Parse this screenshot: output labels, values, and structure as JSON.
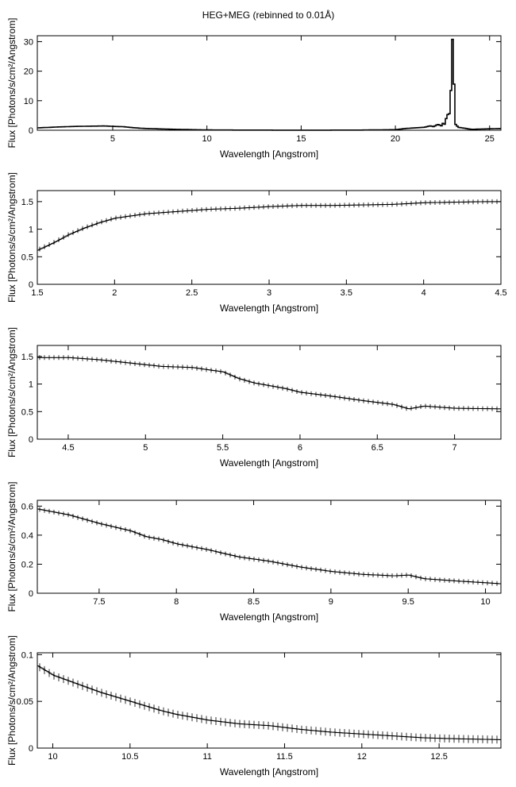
{
  "title": "HEG+MEG (rebinned to 0.01Å)",
  "chart_data": [
    {
      "type": "line",
      "xlabel": "Wavelength [Angstrom]",
      "ylabel": "Flux [Photons/s/cm²/Angstrom]",
      "xlim": [
        1,
        25.6
      ],
      "ylim": [
        0,
        32
      ],
      "xticks": [
        5,
        10,
        15,
        20,
        25
      ],
      "yticks": [
        0,
        10,
        20,
        30
      ],
      "series": [
        {
          "values": [
            [
              1.0,
              0.8
            ],
            [
              2.0,
              1.1
            ],
            [
              3.0,
              1.3
            ],
            [
              4.0,
              1.4
            ],
            [
              4.5,
              1.45
            ],
            [
              5.0,
              1.3
            ],
            [
              5.5,
              1.2
            ],
            [
              6.0,
              0.9
            ],
            [
              6.5,
              0.65
            ],
            [
              7.0,
              0.55
            ],
            [
              8.0,
              0.35
            ],
            [
              9.0,
              0.22
            ],
            [
              10.0,
              0.1
            ],
            [
              12.0,
              0.05
            ],
            [
              15.0,
              0.03
            ],
            [
              18.0,
              0.05
            ],
            [
              20.0,
              0.2
            ],
            [
              20.5,
              0.6
            ],
            [
              21.0,
              0.8
            ],
            [
              21.5,
              1.0
            ],
            [
              21.8,
              1.5
            ],
            [
              22.0,
              1.2
            ],
            [
              22.2,
              2.0
            ],
            [
              22.4,
              1.5
            ],
            [
              22.5,
              2.5
            ],
            [
              22.6,
              1.8
            ],
            [
              22.7,
              6.0
            ],
            [
              22.8,
              4.0
            ],
            [
              22.9,
              12.0
            ],
            [
              22.95,
              30.0
            ],
            [
              23.0,
              31.0
            ],
            [
              23.05,
              12.0
            ],
            [
              23.1,
              20.0
            ],
            [
              23.15,
              2.0
            ],
            [
              23.3,
              1.0
            ],
            [
              24.0,
              0.3
            ],
            [
              25.0,
              0.5
            ],
            [
              25.6,
              0.6
            ]
          ]
        }
      ]
    },
    {
      "type": "line",
      "xlabel": "Wavelength [Angstrom]",
      "ylabel": "Flux [Photons/s/cm²/Angstrom]",
      "xlim": [
        1.5,
        4.5
      ],
      "ylim": [
        0,
        1.7
      ],
      "xticks": [
        1.5,
        2,
        2.5,
        3,
        3.5,
        4,
        4.5
      ],
      "yticks": [
        0,
        0.5,
        1,
        1.5
      ],
      "series": [
        {
          "values": [
            [
              1.5,
              0.62
            ],
            [
              1.6,
              0.75
            ],
            [
              1.7,
              0.9
            ],
            [
              1.8,
              1.02
            ],
            [
              1.9,
              1.12
            ],
            [
              2.0,
              1.2
            ],
            [
              2.2,
              1.28
            ],
            [
              2.4,
              1.32
            ],
            [
              2.6,
              1.36
            ],
            [
              2.8,
              1.38
            ],
            [
              3.0,
              1.41
            ],
            [
              3.2,
              1.43
            ],
            [
              3.4,
              1.43
            ],
            [
              3.6,
              1.44
            ],
            [
              3.8,
              1.45
            ],
            [
              4.0,
              1.48
            ],
            [
              4.2,
              1.49
            ],
            [
              4.4,
              1.5
            ],
            [
              4.5,
              1.5
            ]
          ]
        }
      ]
    },
    {
      "type": "line",
      "xlabel": "Wavelength [Angstrom]",
      "ylabel": "Flux [Photons/s/cm²/Angstrom]",
      "xlim": [
        4.3,
        7.3
      ],
      "ylim": [
        0,
        1.7
      ],
      "xticks": [
        4.5,
        5,
        5.5,
        6,
        6.5,
        7
      ],
      "yticks": [
        0,
        0.5,
        1,
        1.5
      ],
      "series": [
        {
          "values": [
            [
              4.3,
              1.48
            ],
            [
              4.5,
              1.48
            ],
            [
              4.7,
              1.44
            ],
            [
              4.9,
              1.38
            ],
            [
              5.1,
              1.32
            ],
            [
              5.3,
              1.3
            ],
            [
              5.5,
              1.22
            ],
            [
              5.6,
              1.1
            ],
            [
              5.7,
              1.02
            ],
            [
              5.8,
              0.97
            ],
            [
              5.9,
              0.92
            ],
            [
              6.0,
              0.85
            ],
            [
              6.2,
              0.78
            ],
            [
              6.4,
              0.7
            ],
            [
              6.6,
              0.63
            ],
            [
              6.7,
              0.55
            ],
            [
              6.8,
              0.6
            ],
            [
              7.0,
              0.56
            ],
            [
              7.3,
              0.55
            ]
          ]
        }
      ]
    },
    {
      "type": "line",
      "xlabel": "Wavelength [Angstrom]",
      "ylabel": "Flux [Photons/s/cm²/Angstrom]",
      "xlim": [
        7.1,
        10.1
      ],
      "ylim": [
        0,
        0.64
      ],
      "xticks": [
        7.5,
        8,
        8.5,
        9,
        9.5,
        10
      ],
      "yticks": [
        0,
        0.2,
        0.4,
        0.6
      ],
      "series": [
        {
          "values": [
            [
              7.1,
              0.58
            ],
            [
              7.3,
              0.54
            ],
            [
              7.5,
              0.48
            ],
            [
              7.7,
              0.43
            ],
            [
              7.8,
              0.39
            ],
            [
              7.9,
              0.37
            ],
            [
              8.0,
              0.34
            ],
            [
              8.2,
              0.3
            ],
            [
              8.4,
              0.25
            ],
            [
              8.6,
              0.22
            ],
            [
              8.8,
              0.18
            ],
            [
              9.0,
              0.15
            ],
            [
              9.2,
              0.13
            ],
            [
              9.4,
              0.12
            ],
            [
              9.5,
              0.125
            ],
            [
              9.6,
              0.1
            ],
            [
              9.8,
              0.085
            ],
            [
              10.0,
              0.072
            ],
            [
              10.1,
              0.065
            ]
          ]
        }
      ]
    },
    {
      "type": "line",
      "xlabel": "Wavelength [Angstrom]",
      "ylabel": "Flux [Photons/s/cm²/Angstrom]",
      "xlim": [
        9.9,
        12.9
      ],
      "ylim": [
        0,
        0.102
      ],
      "xticks": [
        10,
        10.5,
        11,
        11.5,
        12,
        12.5
      ],
      "yticks": [
        0,
        0.05,
        0.1
      ],
      "series": [
        {
          "values": [
            [
              9.9,
              0.088
            ],
            [
              10.0,
              0.078
            ],
            [
              10.1,
              0.072
            ],
            [
              10.2,
              0.066
            ],
            [
              10.3,
              0.06
            ],
            [
              10.4,
              0.055
            ],
            [
              10.5,
              0.05
            ],
            [
              10.6,
              0.045
            ],
            [
              10.7,
              0.04
            ],
            [
              10.8,
              0.036
            ],
            [
              10.9,
              0.033
            ],
            [
              11.0,
              0.03
            ],
            [
              11.2,
              0.026
            ],
            [
              11.4,
              0.024
            ],
            [
              11.6,
              0.02
            ],
            [
              11.8,
              0.017
            ],
            [
              12.0,
              0.015
            ],
            [
              12.2,
              0.013
            ],
            [
              12.4,
              0.011
            ],
            [
              12.6,
              0.01
            ],
            [
              12.9,
              0.009
            ]
          ]
        }
      ]
    }
  ]
}
